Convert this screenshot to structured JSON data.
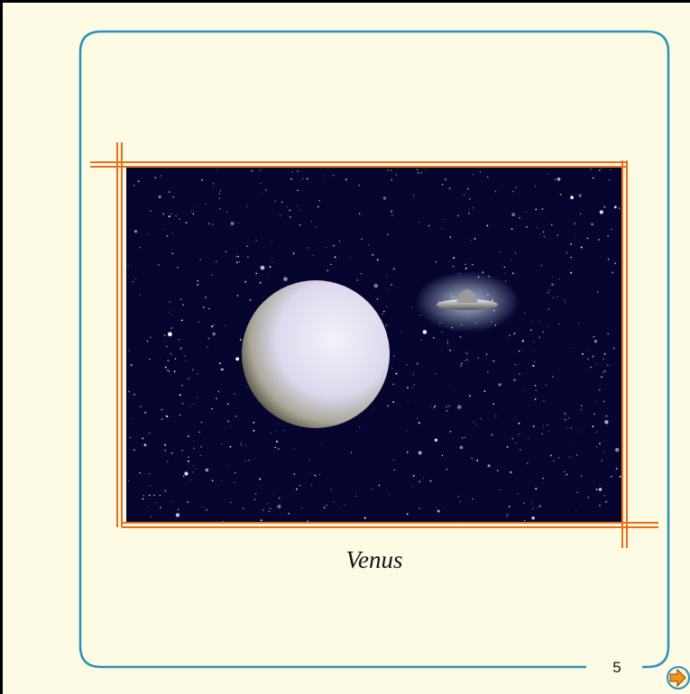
{
  "slide": {
    "caption": "Venus",
    "page_number": "5"
  }
}
